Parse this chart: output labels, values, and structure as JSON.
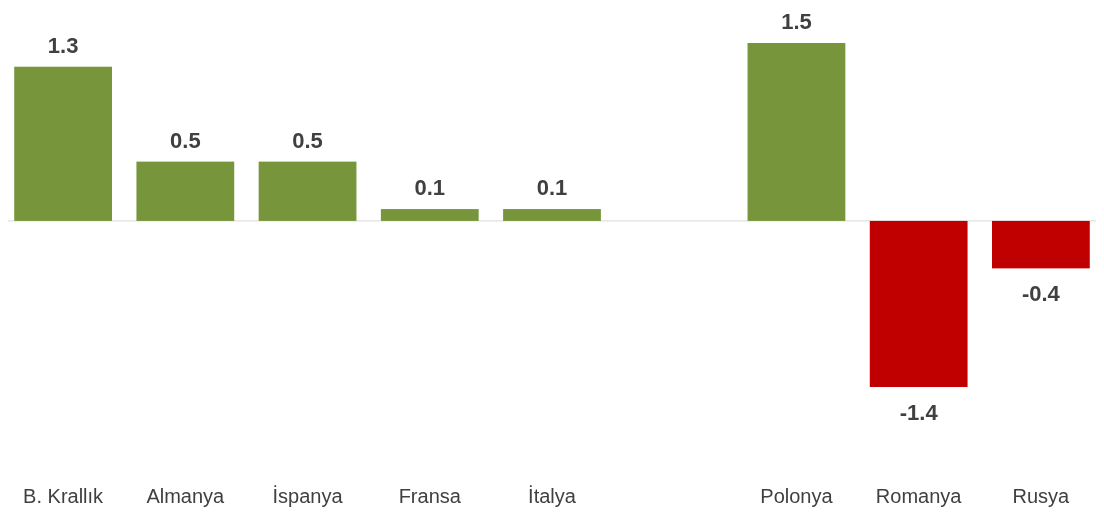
{
  "chart_data": {
    "type": "bar",
    "categories": [
      "B. Krallık",
      "Almanya",
      "İspanya",
      "Fransa",
      "İtalya",
      null,
      "Polonya",
      "Romanya",
      "Rusya"
    ],
    "values": [
      1.3,
      0.5,
      0.5,
      0.1,
      0.1,
      null,
      1.5,
      -1.4,
      -0.4
    ],
    "colors": [
      "#77963c",
      "#77963c",
      "#77963c",
      "#77963c",
      "#77963c",
      null,
      "#77963c",
      "#c00000",
      "#c00000"
    ],
    "data_labels": true
  }
}
